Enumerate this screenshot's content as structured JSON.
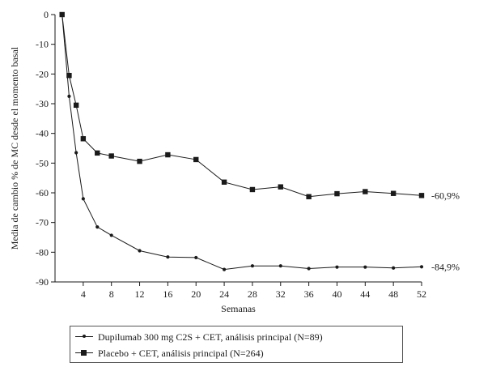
{
  "chart_data": {
    "type": "line",
    "xlabel": "Semanas",
    "ylabel": "Media de cambio % de MC desde el momento basal",
    "xlim": [
      0,
      52
    ],
    "ylim": [
      -90,
      0
    ],
    "xticks": [
      4,
      8,
      12,
      16,
      20,
      24,
      28,
      32,
      36,
      40,
      44,
      48,
      52
    ],
    "yticks": [
      0,
      -10,
      -20,
      -30,
      -40,
      -50,
      -60,
      -70,
      -80,
      -90
    ],
    "grid": false,
    "legend_position": "bottom",
    "series": [
      {
        "name": "Dupilumab 300 mg C2S + CET, análisis principal (N=89)",
        "marker": "dot",
        "end_label": "-84,9%",
        "x": [
          1,
          2,
          3,
          4,
          6,
          8,
          12,
          16,
          20,
          24,
          28,
          32,
          36,
          40,
          44,
          48,
          52
        ],
        "y": [
          0,
          -27.5,
          -46.5,
          -62,
          -71.5,
          -74.3,
          -79.5,
          -81.6,
          -81.8,
          -85.8,
          -84.6,
          -84.6,
          -85.5,
          -85.0,
          -85.0,
          -85.3,
          -84.9
        ]
      },
      {
        "name": "Placebo + CET, análisis principal (N=264)",
        "marker": "square",
        "end_label": "-60,9%",
        "x": [
          1,
          2,
          3,
          4,
          6,
          8,
          12,
          16,
          20,
          24,
          28,
          32,
          36,
          40,
          44,
          48,
          52
        ],
        "y": [
          0,
          -20.5,
          -30.5,
          -41.8,
          -46.6,
          -47.6,
          -49.4,
          -47.2,
          -48.8,
          -56.4,
          -58.9,
          -58.0,
          -61.3,
          -60.3,
          -59.6,
          -60.2,
          -60.9
        ]
      }
    ]
  }
}
